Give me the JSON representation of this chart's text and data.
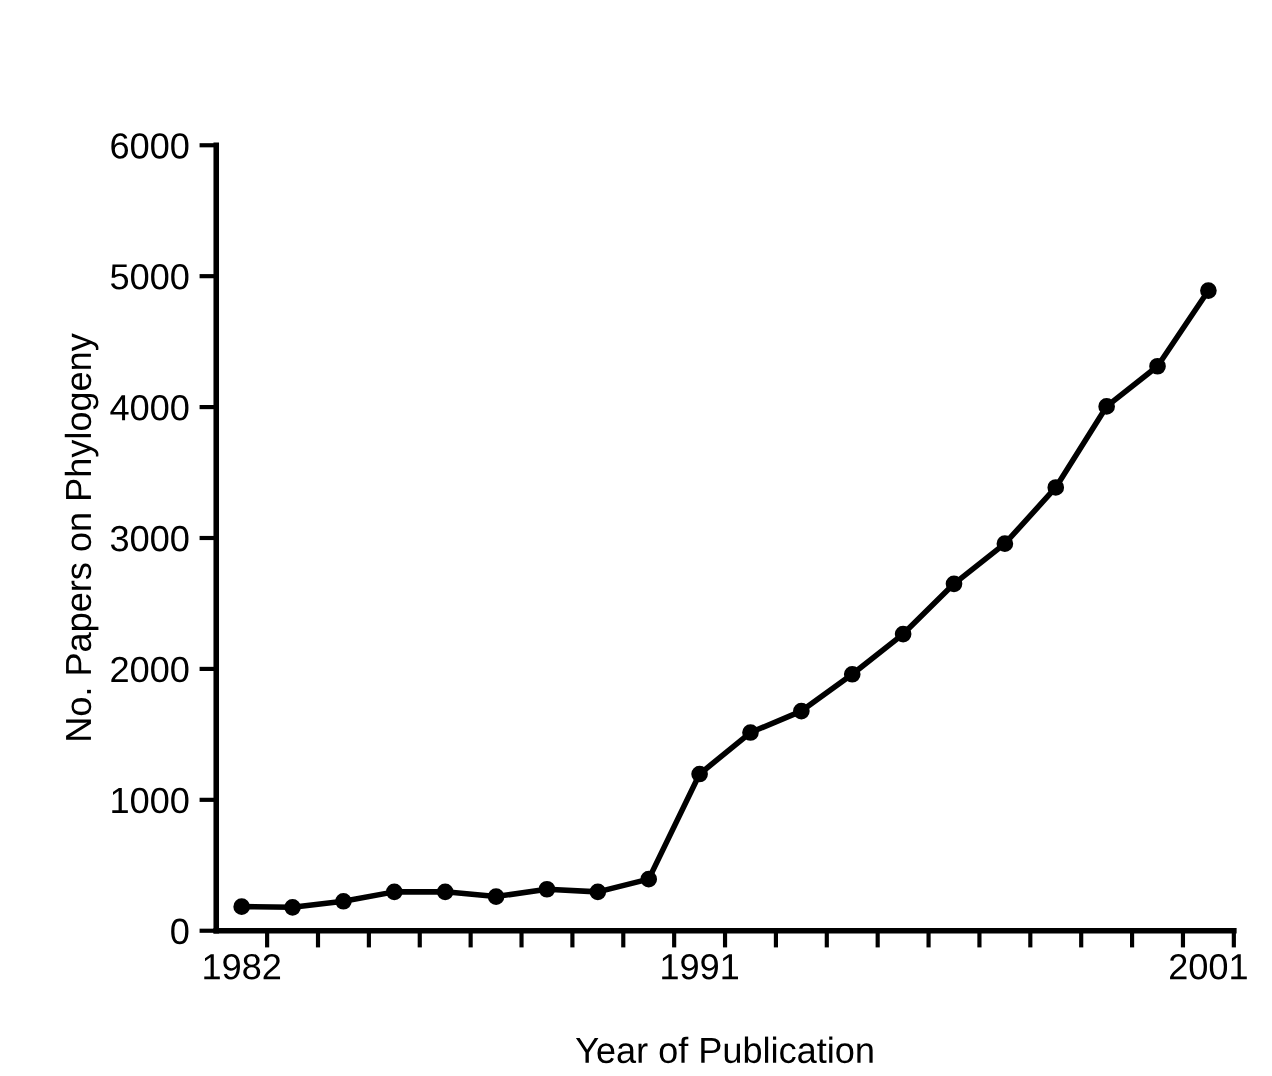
{
  "chart_data": {
    "type": "line",
    "xlabel": "Year of Publication",
    "ylabel": "No. Papers on Phylogeny",
    "x": [
      1982,
      1983,
      1984,
      1985,
      1986,
      1987,
      1988,
      1989,
      1990,
      1991,
      1992,
      1993,
      1994,
      1995,
      1996,
      1997,
      1998,
      1999,
      2000,
      2001
    ],
    "series": [
      {
        "color": "#000000",
        "values": [
          184,
          179,
          225,
          297,
          297,
          261,
          317,
          297,
          394,
          1197,
          1514,
          1678,
          1959,
          2266,
          2650,
          2957,
          3386,
          4005,
          4312,
          4890
        ]
      }
    ],
    "xlim": [
      1981.5,
      2001.5
    ],
    "xticks": [
      {
        "value": 1982,
        "label": "1982"
      },
      {
        "value": 1991,
        "label": "1991"
      },
      {
        "value": 2001,
        "label": "2001"
      },
      {
        "value": 1982.5,
        "label": null
      },
      {
        "value": 1983.5,
        "label": null
      },
      {
        "value": 1984.5,
        "label": null
      },
      {
        "value": 1985.5,
        "label": null
      },
      {
        "value": 1986.5,
        "label": null
      },
      {
        "value": 1987.5,
        "label": null
      },
      {
        "value": 1988.5,
        "label": null
      },
      {
        "value": 1989.5,
        "label": null
      },
      {
        "value": 1990.5,
        "label": null
      },
      {
        "value": 1991.5,
        "label": null
      },
      {
        "value": 1992.5,
        "label": null
      },
      {
        "value": 1993.5,
        "label": null
      },
      {
        "value": 1994.5,
        "label": null
      },
      {
        "value": 1995.5,
        "label": null
      },
      {
        "value": 1996.5,
        "label": null
      },
      {
        "value": 1997.5,
        "label": null
      },
      {
        "value": 1998.5,
        "label": null
      },
      {
        "value": 1999.5,
        "label": null
      },
      {
        "value": 2000.5,
        "label": null
      },
      {
        "value": 2001.5,
        "label": null
      }
    ],
    "ylim": [
      0,
      6000
    ],
    "yticks": [
      0,
      1000,
      2000,
      3000,
      4000,
      5000,
      6000
    ],
    "grid": false,
    "legend": false,
    "marker": "circle",
    "line_style": "solid"
  }
}
